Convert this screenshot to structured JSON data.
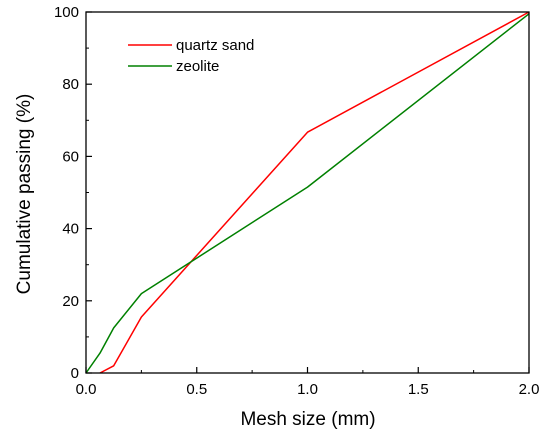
{
  "chart_data": {
    "type": "line",
    "title": "",
    "xlabel": "Mesh size (mm)",
    "ylabel": "Cumulative passing (%)",
    "xlim": [
      0.0,
      2.0
    ],
    "ylim": [
      0,
      100
    ],
    "x_ticks": [
      0.0,
      0.5,
      1.0,
      1.5,
      2.0
    ],
    "x_tick_labels": [
      "0.0",
      "0.5",
      "1.0",
      "1.5",
      "2.0"
    ],
    "y_ticks": [
      0,
      20,
      40,
      60,
      80,
      100
    ],
    "y_tick_labels": [
      "0",
      "20",
      "40",
      "60",
      "80",
      "100"
    ],
    "grid": false,
    "legend_position": "top-left",
    "series": [
      {
        "name": "quartz sand",
        "color": "#ff0000",
        "x": [
          0.063,
          0.125,
          0.25,
          1.0,
          2.0
        ],
        "y": [
          0,
          2,
          15.5,
          66.7,
          100
        ]
      },
      {
        "name": "zeolite",
        "color": "#008000",
        "x": [
          0.0,
          0.063,
          0.125,
          0.25,
          1.0,
          2.0
        ],
        "y": [
          0,
          5.5,
          12.5,
          22,
          51.5,
          99.5
        ]
      }
    ]
  }
}
